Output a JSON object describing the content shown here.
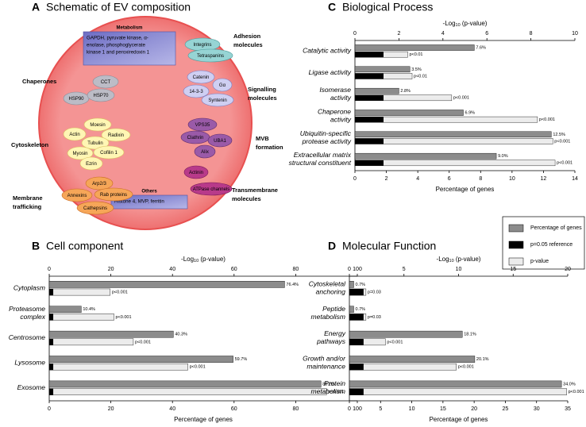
{
  "schematic": {
    "panel": "A",
    "title": "Schematic of EV composition",
    "boxes": [
      {
        "title": "Metabolism",
        "text": [
          "GAPDH, pyruvate kinase, α-",
          "enolase, phosphoglycerate",
          "kinase 1 and peroxiredoxin 1"
        ]
      },
      {
        "title": "Others",
        "text": [
          "Histone 4, MVP, ferritin"
        ]
      }
    ],
    "groups": [
      {
        "label": [
          "Chaperones"
        ],
        "proteins": [
          "CCT",
          "HSP90",
          "HSP70"
        ]
      },
      {
        "label": [
          "Adhesion",
          "molecules"
        ],
        "proteins": [
          "Integrins",
          "Tetraspanins"
        ]
      },
      {
        "label": [
          "Signalling",
          "molecules"
        ],
        "proteins": [
          "Catenin",
          "Gα",
          "14-3-3",
          "Syntenin"
        ]
      },
      {
        "label": [
          "Cytoskeleton"
        ],
        "proteins": [
          "Moesin",
          "Actin",
          "Radixin",
          "Tubulin",
          "Myosin",
          "Cofilin 1",
          "Ezrin"
        ]
      },
      {
        "label": [
          "Membrane",
          "trafficking"
        ],
        "proteins": [
          "Arp2/3",
          "Annexins",
          "Rab proteins",
          "Cathepsins"
        ]
      },
      {
        "label": [
          "MVB",
          "formation"
        ],
        "proteins": [
          "VPS35",
          "Clathrin",
          "UBA1",
          "Alix"
        ]
      },
      {
        "label": [
          "Transmembrane",
          "molecules"
        ],
        "proteins": [
          "Actinin",
          "ATPase channels"
        ]
      }
    ]
  },
  "legend": [
    {
      "name": "Percentage of genes",
      "color": "#8c8c8c"
    },
    {
      "name": "p=0.05 reference",
      "color": "#000000"
    },
    {
      "name": "p-value",
      "color": "#ececec"
    }
  ],
  "chart_data": [
    {
      "type": "bar",
      "orientation": "horizontal",
      "panel": "B",
      "title": "Cell component",
      "categories": [
        [
          "Cytoplasm"
        ],
        [
          "Proteasome",
          "complex"
        ],
        [
          "Centrosome"
        ],
        [
          "Lysosome"
        ],
        [
          "Exosome"
        ]
      ],
      "series": [
        {
          "values": [
            76.4,
            10.4,
            40.3,
            59.7,
            88.2
          ],
          "value_labels": [
            "76.4%",
            "10.4%",
            "40.3%",
            "59.7%",
            "88.2%"
          ]
        },
        {
          "axis": "x2",
          "values": [
            1.3,
            1.3,
            1.3,
            1.3,
            1.3
          ]
        },
        {
          "axis": "x2",
          "values": [
            19.8,
            21,
            27.3,
            45,
            90
          ]
        }
      ],
      "p_labels": [
        "p<0.001",
        "p<0.001",
        "p<0.001",
        "p<0.001",
        "p<0.001"
      ],
      "xlabel": "Percentage of genes",
      "x2label": [
        "-Log",
        "10",
        " (p-value)"
      ],
      "xlim": [
        0,
        100
      ],
      "xticks": [
        0,
        20,
        40,
        60,
        80,
        100
      ],
      "x2lim": [
        0,
        100
      ],
      "x2ticks": [
        0,
        20,
        40,
        60,
        80,
        100
      ]
    },
    {
      "type": "bar",
      "orientation": "horizontal",
      "panel": "C",
      "title": "Biological Process",
      "categories": [
        [
          "Catalytic activity"
        ],
        [
          "Ligase activity"
        ],
        [
          "Isomerase",
          "activity"
        ],
        [
          "Chaperone",
          "activity"
        ],
        [
          "Ubiquitin-specific",
          "protease activity"
        ],
        [
          "Extracellular matrix",
          "structural constituent"
        ]
      ],
      "series": [
        {
          "values": [
            7.6,
            3.5,
            2.8,
            6.9,
            12.5,
            9.0
          ],
          "value_labels": [
            "7.6%",
            "3.5%",
            "2.8%",
            "6.9%",
            "12.5%",
            "9.0%"
          ]
        },
        {
          "axis": "x2",
          "values": [
            1.3,
            1.3,
            1.3,
            1.3,
            1.3,
            1.3
          ]
        },
        {
          "axis": "x2",
          "values": [
            2.4,
            2.6,
            4.4,
            8.3,
            9.0,
            9.1
          ]
        }
      ],
      "p_labels": [
        "p<0.01",
        "p<0.01",
        "p<0.001",
        "p<0.001",
        "p<0.001",
        "p<0.001"
      ],
      "xlabel": "Percentage of genes",
      "x2label": [
        "-Log",
        "10",
        " (p-value)"
      ],
      "xlim": [
        0,
        14
      ],
      "xticks": [
        0,
        2,
        4,
        6,
        8,
        10,
        12,
        14
      ],
      "x2lim": [
        0,
        10
      ],
      "x2ticks": [
        0,
        2,
        4,
        6,
        8,
        10
      ]
    },
    {
      "type": "bar",
      "orientation": "horizontal",
      "panel": "D",
      "title": "Molecular Function",
      "categories": [
        [
          "Cytoskeletal",
          "anchoring"
        ],
        [
          "Peptide",
          "metabolism"
        ],
        [
          "Energy",
          "pathways"
        ],
        [
          "Growth and/or",
          "maintenance"
        ],
        [
          "Protein",
          "metabolism"
        ]
      ],
      "series": [
        {
          "values": [
            0.7,
            0.7,
            18.1,
            20.1,
            34.0
          ],
          "value_labels": [
            "0.7%",
            "0.7%",
            "18.1%",
            "20.1%",
            "34.0%"
          ]
        },
        {
          "axis": "x2",
          "values": [
            1.3,
            1.3,
            1.3,
            1.3,
            1.3
          ]
        },
        {
          "axis": "x2",
          "values": [
            1.52,
            1.52,
            3.3,
            9.8,
            19.9
          ]
        }
      ],
      "p_labels": [
        "p=0.03",
        "p=0.03",
        "p<0.001",
        "p<0.001",
        "p<0.001"
      ],
      "xlabel": "Percentage of genes",
      "x2label": [
        "-Log",
        "10",
        " (p-value)"
      ],
      "xlim": [
        0,
        35
      ],
      "xticks": [
        0,
        5,
        10,
        15,
        20,
        25,
        30,
        35
      ],
      "x2lim": [
        0,
        20
      ],
      "x2ticks": [
        0,
        5,
        10,
        15,
        20
      ]
    }
  ]
}
